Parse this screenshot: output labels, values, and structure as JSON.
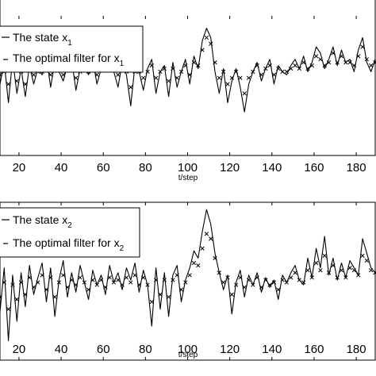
{
  "chart_data": [
    {
      "type": "line",
      "title": "",
      "xlabel": "t/step",
      "ylabel": "",
      "xlim": [
        11,
        189
      ],
      "ylim": [
        -2.5,
        2.0
      ],
      "xticks": [
        20,
        40,
        60,
        80,
        100,
        120,
        140,
        160,
        180
      ],
      "x_tick_labels": [
        "20",
        "40",
        "60",
        "80",
        "100",
        "120",
        "140",
        "160",
        "180"
      ],
      "grid": false,
      "legend_position": "top-left",
      "series": [
        {
          "name": "The state x",
          "name_subscript": "1",
          "style": "solid line",
          "x": [
            11,
            13,
            15,
            17,
            19,
            21,
            23,
            25,
            27,
            29,
            31,
            33,
            35,
            37,
            39,
            41,
            43,
            45,
            47,
            49,
            51,
            53,
            55,
            57,
            59,
            61,
            63,
            65,
            67,
            69,
            71,
            73,
            75,
            77,
            79,
            81,
            83,
            85,
            87,
            89,
            91,
            93,
            95,
            97,
            99,
            101,
            103,
            105,
            107,
            109,
            111,
            113,
            115,
            117,
            119,
            121,
            123,
            125,
            127,
            129,
            131,
            133,
            135,
            137,
            139,
            141,
            143,
            145,
            147,
            149,
            151,
            153,
            155,
            157,
            159,
            161,
            163,
            165,
            167,
            169,
            171,
            173,
            175,
            177,
            179,
            181,
            183,
            185,
            187,
            189
          ],
          "y": [
            -0.2,
            0.5,
            -0.8,
            0.6,
            -0.5,
            0.3,
            -0.6,
            0.4,
            -0.2,
            0.3,
            0.1,
            0.7,
            -0.3,
            0.5,
            0.2,
            -0.1,
            0.4,
            0.6,
            -0.4,
            0.3,
            0.5,
            0.1,
            0.6,
            -0.2,
            0.3,
            0.8,
            0.4,
            0.2,
            -0.3,
            0.5,
            0.1,
            -0.9,
            0.4,
            0.2,
            -0.4,
            0.3,
            0.6,
            -0.5,
            0.2,
            0.4,
            -0.6,
            0.5,
            -0.3,
            0.2,
            0.6,
            -0.2,
            0.7,
            0.3,
            1.2,
            1.6,
            1.3,
            0.2,
            -0.5,
            0.3,
            -0.8,
            -0.1,
            0.3,
            -0.3,
            -1.1,
            -0.2,
            0.2,
            0.5,
            -0.1,
            0.3,
            0.6,
            -0.2,
            0.4,
            0.2,
            0.1,
            0.4,
            0.6,
            0.3,
            0.7,
            0.2,
            0.5,
            1.0,
            0.8,
            0.3,
            0.6,
            1.0,
            0.4,
            0.9,
            0.5,
            0.6,
            0.2,
            0.9,
            1.3,
            0.5,
            0.2,
            0.6
          ]
        },
        {
          "name": "The optimal filter for x",
          "name_subscript": "1",
          "style": "x markers",
          "x": [
            11,
            13,
            15,
            17,
            19,
            21,
            23,
            25,
            27,
            29,
            31,
            33,
            35,
            37,
            39,
            41,
            43,
            45,
            47,
            49,
            51,
            53,
            55,
            57,
            59,
            61,
            63,
            65,
            67,
            69,
            71,
            73,
            75,
            77,
            79,
            81,
            83,
            85,
            87,
            89,
            91,
            93,
            95,
            97,
            99,
            101,
            103,
            105,
            107,
            109,
            111,
            113,
            115,
            117,
            119,
            121,
            123,
            125,
            127,
            129,
            131,
            133,
            135,
            137,
            139,
            141,
            143,
            145,
            147,
            149,
            151,
            153,
            155,
            157,
            159,
            161,
            163,
            165,
            167,
            169,
            171,
            173,
            175,
            177,
            179,
            181,
            183,
            185,
            187,
            189
          ],
          "y": [
            0.1,
            0.2,
            -0.2,
            0.3,
            -0.1,
            0.2,
            -0.2,
            0.3,
            0.1,
            0.2,
            0.2,
            0.4,
            0.1,
            0.3,
            0.3,
            0.1,
            0.3,
            0.4,
            0.0,
            0.2,
            0.4,
            0.2,
            0.4,
            0.1,
            0.3,
            0.5,
            0.4,
            0.3,
            0.1,
            0.3,
            0.2,
            -0.3,
            0.2,
            0.2,
            0.0,
            0.2,
            0.4,
            0.0,
            0.2,
            0.3,
            -0.1,
            0.3,
            0.0,
            0.2,
            0.4,
            0.1,
            0.5,
            0.4,
            0.9,
            1.3,
            1.1,
            0.5,
            0.0,
            0.2,
            -0.2,
            0.0,
            0.2,
            0.0,
            -0.5,
            0.0,
            0.2,
            0.4,
            0.1,
            0.3,
            0.4,
            0.1,
            0.3,
            0.2,
            0.2,
            0.3,
            0.4,
            0.3,
            0.5,
            0.3,
            0.4,
            0.7,
            0.6,
            0.4,
            0.5,
            0.8,
            0.5,
            0.7,
            0.5,
            0.5,
            0.4,
            0.7,
            1.0,
            0.6,
            0.4,
            0.5
          ]
        }
      ]
    },
    {
      "type": "line",
      "title": "",
      "xlabel": "t/step",
      "ylabel": "",
      "xlim": [
        11,
        189
      ],
      "ylim": [
        -3.0,
        3.5
      ],
      "xticks": [
        20,
        40,
        60,
        80,
        100,
        120,
        140,
        160,
        180
      ],
      "x_tick_labels": [
        "20",
        "40",
        "60",
        "80",
        "100",
        "120",
        "140",
        "160",
        "180"
      ],
      "grid": false,
      "legend_position": "top-left",
      "series": [
        {
          "name": "The state x",
          "name_subscript": "2",
          "style": "solid line",
          "x": [
            11,
            13,
            15,
            17,
            19,
            21,
            23,
            25,
            27,
            29,
            31,
            33,
            35,
            37,
            39,
            41,
            43,
            45,
            47,
            49,
            51,
            53,
            55,
            57,
            59,
            61,
            63,
            65,
            67,
            69,
            71,
            73,
            75,
            77,
            79,
            81,
            83,
            85,
            87,
            89,
            91,
            93,
            95,
            97,
            99,
            101,
            103,
            105,
            107,
            109,
            111,
            113,
            115,
            117,
            119,
            121,
            123,
            125,
            127,
            129,
            131,
            133,
            135,
            137,
            139,
            141,
            143,
            145,
            147,
            149,
            151,
            153,
            155,
            157,
            159,
            161,
            163,
            165,
            167,
            169,
            171,
            173,
            175,
            177,
            179,
            181,
            183,
            185,
            187,
            189
          ],
          "y": [
            -1.0,
            0.8,
            -2.2,
            0.5,
            -1.4,
            0.6,
            -0.8,
            0.9,
            -0.3,
            0.4,
            1.0,
            -0.6,
            0.8,
            -1.2,
            0.3,
            1.1,
            -0.4,
            0.6,
            -0.2,
            0.9,
            0.2,
            -0.5,
            0.7,
            0.1,
            0.5,
            -0.3,
            0.9,
            0.2,
            0.6,
            -0.1,
            0.8,
            0.3,
            1.0,
            -0.2,
            0.7,
            0.1,
            -1.6,
            0.8,
            -0.9,
            0.6,
            -1.2,
            0.5,
            0.9,
            -0.6,
            0.3,
            0.8,
            1.5,
            1.2,
            2.3,
            3.2,
            2.6,
            1.4,
            0.6,
            -0.1,
            0.5,
            -1.1,
            0.2,
            0.7,
            -0.4,
            0.5,
            0.1,
            0.6,
            -0.2,
            0.4,
            0.0,
            0.3,
            -0.5,
            0.5,
            0.2,
            0.6,
            0.9,
            0.3,
            0.1,
            1.2,
            0.4,
            1.6,
            0.8,
            2.1,
            0.5,
            1.2,
            0.3,
            1.0,
            0.4,
            1.1,
            0.8,
            0.5,
            2.0,
            1.4,
            0.8,
            0.6
          ]
        },
        {
          "name": "The optimal filter for x",
          "name_subscript": "2",
          "style": "x markers",
          "x": [
            11,
            13,
            15,
            17,
            19,
            21,
            23,
            25,
            27,
            29,
            31,
            33,
            35,
            37,
            39,
            41,
            43,
            45,
            47,
            49,
            51,
            53,
            55,
            57,
            59,
            61,
            63,
            65,
            67,
            69,
            71,
            73,
            75,
            77,
            79,
            81,
            83,
            85,
            87,
            89,
            91,
            93,
            95,
            97,
            99,
            101,
            103,
            105,
            107,
            109,
            111,
            113,
            115,
            117,
            119,
            121,
            123,
            125,
            127,
            129,
            131,
            133,
            135,
            137,
            139,
            141,
            143,
            145,
            147,
            149,
            151,
            153,
            155,
            157,
            159,
            161,
            163,
            165,
            167,
            169,
            171,
            173,
            175,
            177,
            179,
            181,
            183,
            185,
            187,
            189
          ],
          "y": [
            -0.4,
            0.2,
            -0.9,
            0.1,
            -0.5,
            0.2,
            -0.3,
            0.4,
            0.0,
            0.2,
            0.5,
            -0.1,
            0.4,
            -0.4,
            0.2,
            0.5,
            0.0,
            0.3,
            0.1,
            0.4,
            0.2,
            -0.1,
            0.3,
            0.1,
            0.3,
            0.0,
            0.4,
            0.2,
            0.3,
            0.1,
            0.4,
            0.2,
            0.5,
            0.1,
            0.4,
            0.1,
            -0.6,
            0.3,
            -0.3,
            0.3,
            -0.4,
            0.3,
            0.5,
            -0.1,
            0.2,
            0.5,
            1.0,
            0.9,
            1.6,
            2.2,
            2.0,
            1.2,
            0.6,
            0.2,
            0.4,
            -0.3,
            0.1,
            0.4,
            0.0,
            0.3,
            0.1,
            0.4,
            0.0,
            0.3,
            0.1,
            0.2,
            -0.1,
            0.3,
            0.2,
            0.4,
            0.6,
            0.3,
            0.2,
            0.7,
            0.4,
            1.0,
            0.7,
            1.3,
            0.6,
            0.9,
            0.4,
            0.7,
            0.4,
            0.8,
            0.7,
            0.5,
            1.3,
            1.1,
            0.7,
            0.6
          ]
        }
      ]
    }
  ],
  "legend_top": {
    "entry1_text": "The state x",
    "entry1_sub": "1",
    "entry2_text": "The optimal filter for x",
    "entry2_sub": "1"
  },
  "legend_bottom": {
    "entry1_text": "The state x",
    "entry1_sub": "2",
    "entry2_text": "The optimal filter for x",
    "entry2_sub": "2"
  },
  "colors": {
    "line": "#000000",
    "background": "#ffffff"
  }
}
